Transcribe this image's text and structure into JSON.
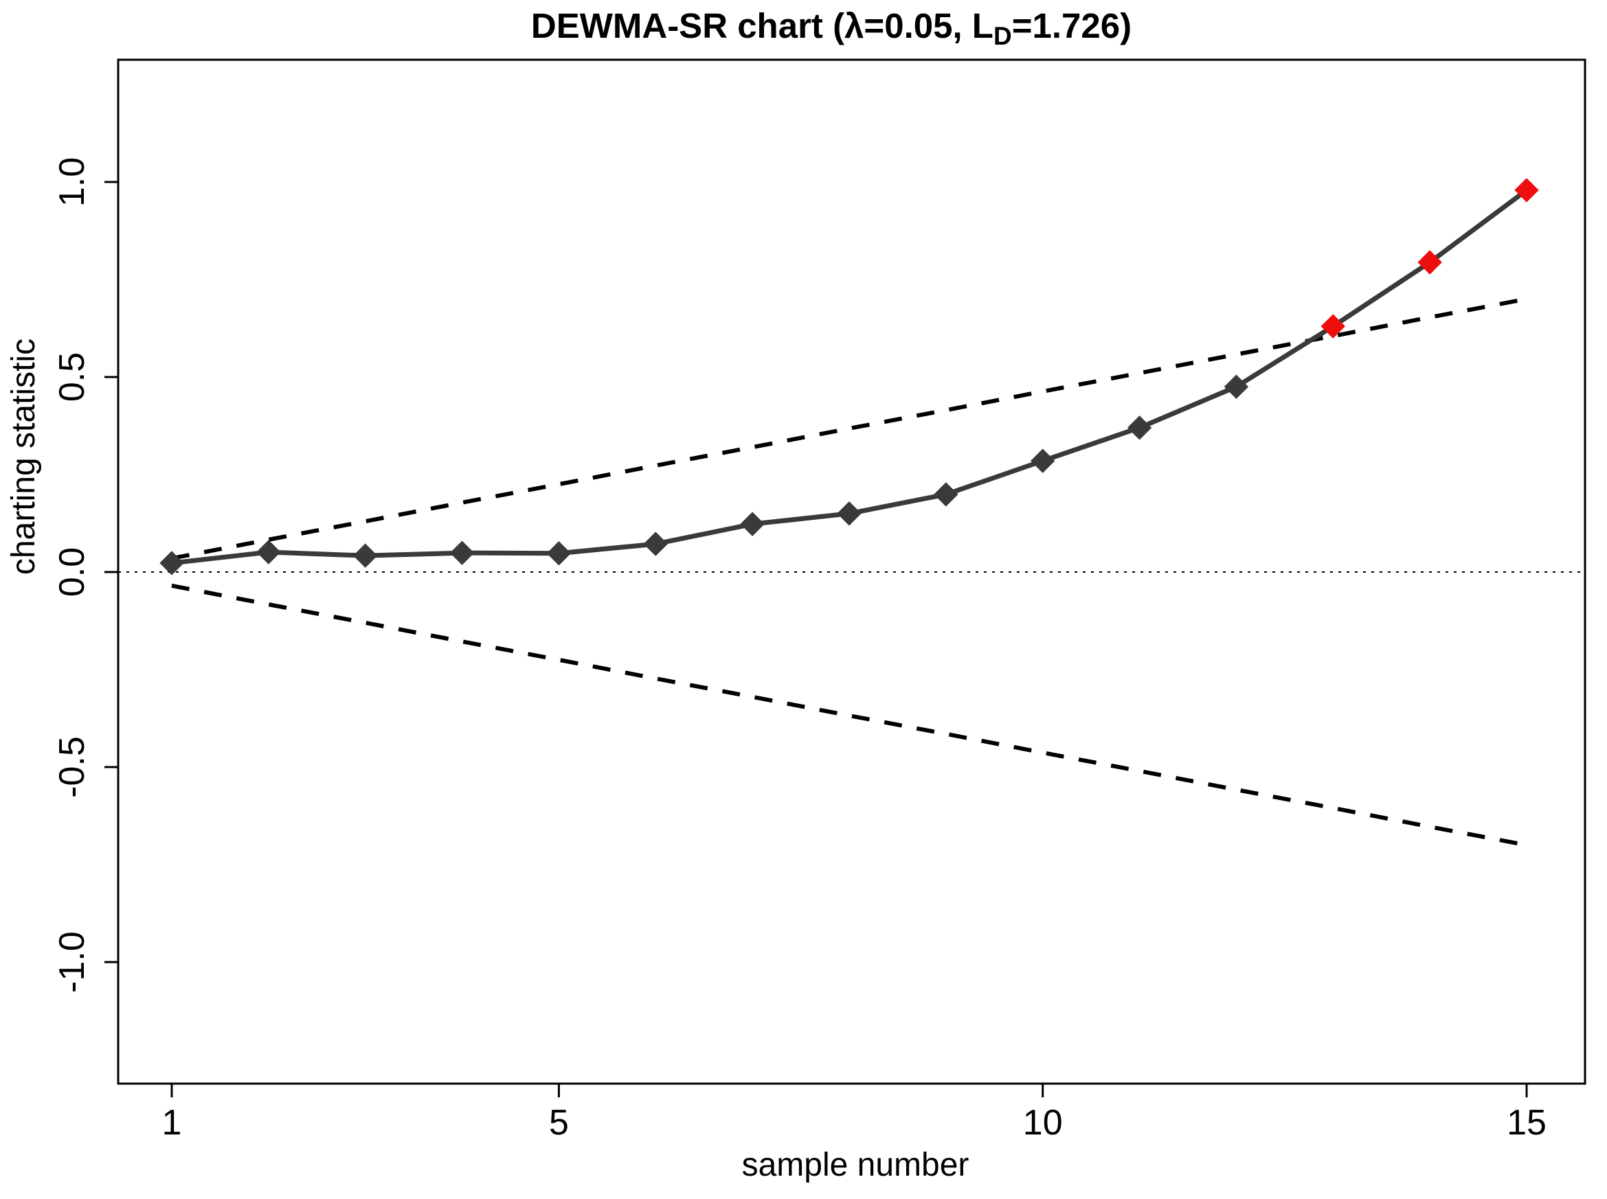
{
  "title": {
    "prefix": "DEWMA-SR chart (λ=0.05, L",
    "sub": "D",
    "suffix": "=1.726)",
    "full_text": "DEWMA-SR chart (λ=0.05, L_D=1.726)"
  },
  "chart_data": {
    "type": "line",
    "title": "DEWMA-SR chart (λ=0.05, L_D=1.726)",
    "xlabel": "sample number",
    "ylabel": "charting statistic",
    "x": [
      1,
      2,
      3,
      4,
      5,
      6,
      7,
      8,
      9,
      10,
      11,
      12,
      13,
      14,
      15
    ],
    "series": [
      {
        "name": "charting statistic",
        "values": [
          0.023,
          0.051,
          0.042,
          0.049,
          0.048,
          0.072,
          0.123,
          0.15,
          0.199,
          0.285,
          0.37,
          0.475,
          0.63,
          0.794,
          0.979
        ],
        "color": "#3a3a3a",
        "marker": "diamond",
        "out_of_control_samples": [
          13,
          14,
          15
        ],
        "out_of_control_color": "#ee0e0e"
      }
    ],
    "control_limits": {
      "ucl": [
        0.035,
        0.083,
        0.13,
        0.178,
        0.225,
        0.273,
        0.32,
        0.368,
        0.415,
        0.463,
        0.51,
        0.558,
        0.605,
        0.653,
        0.7
      ],
      "lcl": [
        -0.035,
        -0.083,
        -0.13,
        -0.178,
        -0.225,
        -0.273,
        -0.32,
        -0.368,
        -0.415,
        -0.463,
        -0.51,
        -0.558,
        -0.605,
        -0.653,
        -0.7
      ],
      "line_style": "dashed",
      "color": "#000000"
    },
    "center_line": {
      "value": 0.0,
      "line_style": "dotted",
      "color": "#000000"
    },
    "x_ticks": [
      1,
      5,
      10,
      15
    ],
    "x_tick_labels": [
      "1",
      "5",
      "10",
      "15"
    ],
    "y_ticks": [
      -1.0,
      -0.5,
      0.0,
      0.5,
      1.0
    ],
    "y_tick_labels": [
      "-1.0",
      "-0.5",
      "0.0",
      "0.5",
      "1.0"
    ],
    "xlim": [
      1,
      15
    ],
    "ylim": [
      -1.31,
      1.31
    ],
    "grid": false,
    "legend": null
  }
}
